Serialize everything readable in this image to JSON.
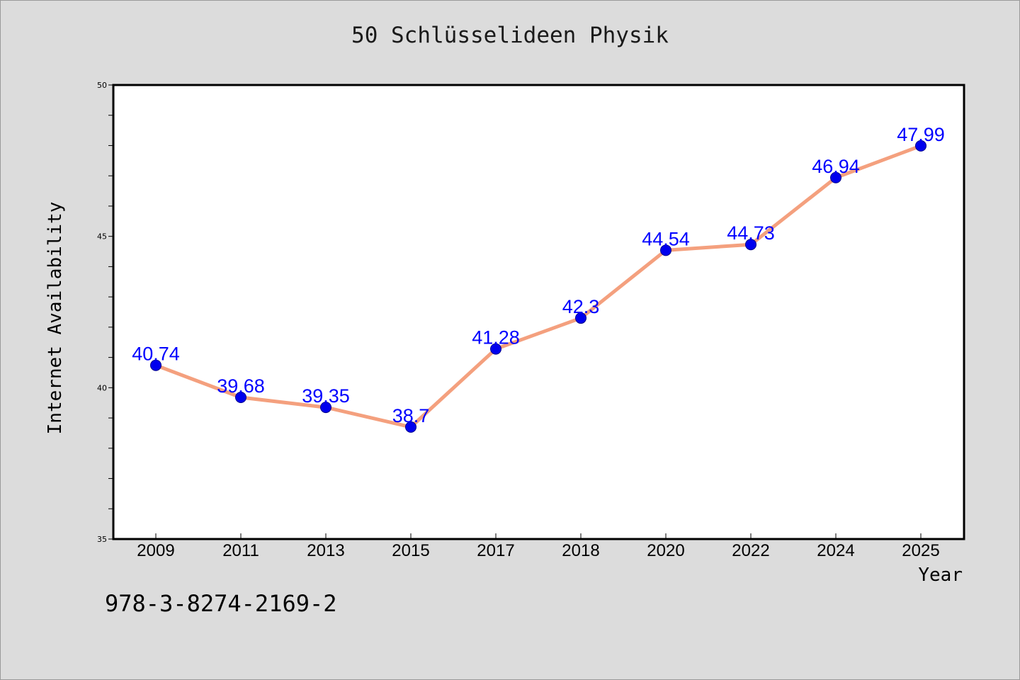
{
  "chart_data": {
    "type": "line",
    "title": "50 Schlüsselideen Physik",
    "xlabel": "Year",
    "ylabel": "Internet Availability",
    "categories": [
      "2009",
      "2011",
      "2013",
      "2015",
      "2017",
      "2018",
      "2020",
      "2022",
      "2024",
      "2025"
    ],
    "series": [
      {
        "values": [
          40.74,
          39.68,
          39.35,
          38.7,
          41.28,
          42.3,
          44.54,
          44.73,
          46.94,
          47.99
        ],
        "data_labels": [
          "40.74",
          "39.68",
          "39.35",
          "38.7",
          "41.28",
          "42.3",
          "44.54",
          "44.73",
          "46.94",
          "47.99"
        ]
      }
    ],
    "ylim": [
      35,
      50
    ],
    "y_ticks": [
      "35",
      "40",
      "45",
      "50"
    ],
    "grid": false,
    "colors": {
      "line": "#f4a07e",
      "marker": "#0000ee",
      "data_label": "#0000ff",
      "background": "#dcdcdc",
      "plot_bg": "#ffffff"
    }
  },
  "footer": {
    "isbn": "978-3-8274-2169-2"
  }
}
